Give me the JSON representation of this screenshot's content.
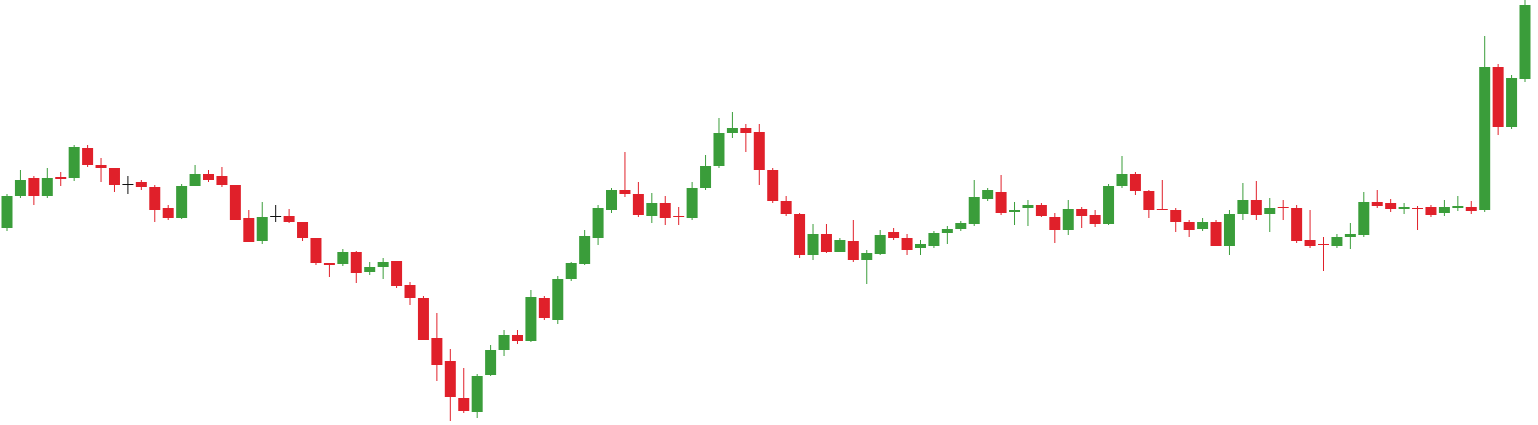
{
  "chart_data": {
    "type": "candlestick",
    "up_color": "#3a9d3a",
    "down_color": "#e0202a",
    "doji_color": "#111111",
    "ylim": [
      0,
      425
    ],
    "open": [
      197,
      229,
      247,
      229,
      248,
      247,
      277,
      260,
      257,
      241,
      243,
      238,
      217,
      207,
      239,
      251,
      249,
      240,
      207,
      184,
      209,
      209,
      203,
      187,
      162,
      161,
      173,
      153,
      158,
      164,
      140,
      127,
      87,
      64,
      27,
      13,
      50,
      75,
      90,
      84,
      127,
      105,
      146,
      161,
      187,
      215,
      235,
      231,
      209,
      222,
      209,
      207,
      237,
      259,
      292,
      297,
      293,
      255,
      224,
      211,
      170,
      191,
      173,
      184,
      165,
      171,
      193,
      187,
      177,
      179,
      192,
      196,
      201,
      226,
      233,
      213,
      217,
      220,
      208,
      195,
      216,
      210,
      201,
      239,
      251,
      234,
      216,
      215,
      203,
      196,
      203,
      179,
      211,
      225,
      211,
      218,
      217,
      185,
      181,
      179,
      188,
      190,
      223,
      222,
      216,
      217,
      218,
      212,
      217,
      218,
      215,
      358,
      298,
      346
    ],
    "high": [
      231,
      255,
      249,
      257,
      253,
      280,
      280,
      267,
      257,
      249,
      245,
      240,
      220,
      241,
      260,
      255,
      258,
      240,
      215,
      223,
      220,
      216,
      203,
      187,
      162,
      176,
      174,
      163,
      167,
      164,
      143,
      129,
      112,
      76,
      57,
      51,
      80,
      95,
      95,
      135,
      129,
      149,
      163,
      195,
      220,
      237,
      273,
      243,
      232,
      229,
      218,
      243,
      270,
      307,
      313,
      301,
      301,
      257,
      229,
      212,
      201,
      201,
      187,
      205,
      175,
      195,
      197,
      191,
      185,
      194,
      199,
      204,
      245,
      237,
      250,
      223,
      225,
      222,
      212,
      225,
      218,
      215,
      241,
      269,
      253,
      235,
      245,
      217,
      205,
      207,
      205,
      215,
      242,
      244,
      227,
      225,
      220,
      215,
      188,
      191,
      202,
      233,
      235,
      226,
      222,
      219,
      220,
      225,
      229,
      224,
      389,
      361,
      350,
      425
    ],
    "low": [
      194,
      227,
      220,
      227,
      239,
      244,
      258,
      243,
      233,
      231,
      235,
      203,
      205,
      206,
      239,
      243,
      238,
      205,
      183,
      181,
      203,
      202,
      184,
      160,
      148,
      159,
      142,
      150,
      146,
      137,
      120,
      85,
      44,
      4,
      12,
      7,
      49,
      69,
      81,
      83,
      105,
      101,
      144,
      160,
      180,
      212,
      228,
      208,
      202,
      200,
      200,
      205,
      235,
      257,
      287,
      273,
      240,
      222,
      209,
      167,
      165,
      172,
      173,
      163,
      141,
      170,
      185,
      170,
      170,
      177,
      181,
      194,
      199,
      224,
      210,
      200,
      199,
      208,
      182,
      190,
      197,
      198,
      200,
      237,
      230,
      207,
      215,
      193,
      188,
      194,
      179,
      170,
      205,
      205,
      193,
      205,
      182,
      177,
      154,
      177,
      176,
      188,
      217,
      213,
      211,
      195,
      208,
      209,
      214,
      211,
      213,
      290,
      296,
      343
    ],
    "close": [
      229,
      245,
      229,
      247,
      246,
      278,
      260,
      257,
      240,
      241,
      238,
      215,
      207,
      239,
      251,
      245,
      240,
      205,
      183,
      208,
      209,
      203,
      187,
      162,
      160,
      173,
      152,
      158,
      163,
      139,
      127,
      85,
      60,
      28,
      14,
      49,
      75,
      90,
      84,
      128,
      107,
      146,
      162,
      189,
      217,
      235,
      231,
      210,
      222,
      207,
      208,
      237,
      259,
      292,
      297,
      292,
      255,
      224,
      211,
      170,
      191,
      173,
      185,
      165,
      172,
      190,
      187,
      175,
      181,
      192,
      196,
      202,
      228,
      235,
      212,
      215,
      220,
      209,
      195,
      216,
      209,
      201,
      239,
      251,
      234,
      215,
      215,
      203,
      195,
      203,
      179,
      211,
      225,
      210,
      217,
      217,
      184,
      179,
      180,
      188,
      191,
      223,
      219,
      216,
      218,
      216,
      210,
      218,
      219,
      214,
      358,
      298,
      347,
      420
    ]
  }
}
